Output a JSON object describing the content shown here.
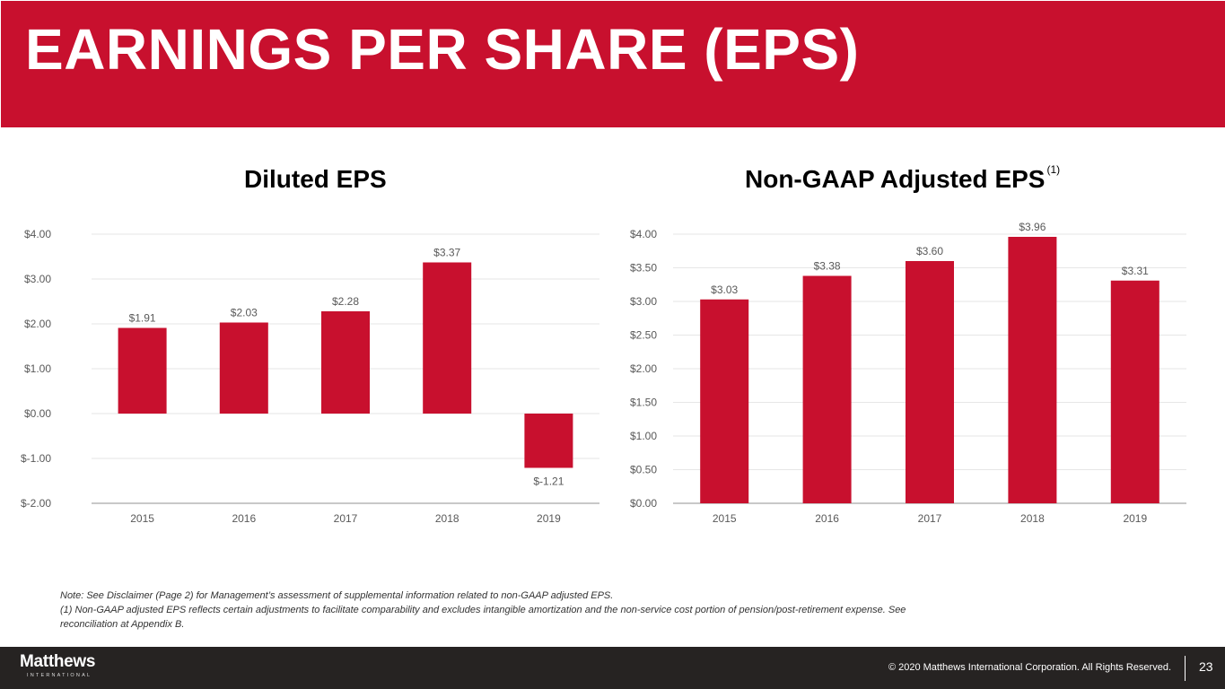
{
  "header": {
    "title": "EARNINGS PER SHARE (EPS)"
  },
  "colors": {
    "brand_red": "#c8102e",
    "footer_bg": "#262322",
    "axis_text": "#595959",
    "grid": "#e6e6e6"
  },
  "chart_data": [
    {
      "type": "bar",
      "title": "Diluted EPS",
      "title_superscript": "",
      "categories": [
        "2015",
        "2016",
        "2017",
        "2018",
        "2019"
      ],
      "values": [
        1.91,
        2.03,
        2.28,
        3.37,
        -1.21
      ],
      "data_labels": [
        "$1.91",
        "$2.03",
        "$2.28",
        "$3.37",
        "$-1.21"
      ],
      "yticks": [
        4,
        3,
        2,
        1,
        0,
        -1,
        -2
      ],
      "ytick_labels": [
        "$4.00",
        "$3.00",
        "$2.00",
        "$1.00",
        "$0.00",
        "$-1.00",
        "$-2.00"
      ],
      "ylim": [
        -2,
        4
      ],
      "xlabel": "",
      "ylabel": "",
      "grid": true,
      "color": "#c8102e"
    },
    {
      "type": "bar",
      "title": "Non-GAAP Adjusted EPS",
      "title_superscript": "(1)",
      "categories": [
        "2015",
        "2016",
        "2017",
        "2018",
        "2019"
      ],
      "values": [
        3.03,
        3.38,
        3.6,
        3.96,
        3.31
      ],
      "data_labels": [
        "$3.03",
        "$3.38",
        "$3.60",
        "$3.96",
        "$3.31"
      ],
      "yticks": [
        4,
        3.5,
        3,
        2.5,
        2,
        1.5,
        1,
        0.5,
        0
      ],
      "ytick_labels": [
        "$4.00",
        "$3.50",
        "$3.00",
        "$2.50",
        "$2.00",
        "$1.50",
        "$1.00",
        "$0.50",
        "$0.00"
      ],
      "ylim": [
        0,
        4
      ],
      "xlabel": "",
      "ylabel": "",
      "grid": true,
      "color": "#c8102e"
    }
  ],
  "notes": [
    "Note: See Disclaimer (Page 2) for Management’s assessment of supplemental information related to non-GAAP adjusted EPS.",
    "(1) Non-GAAP adjusted EPS reflects certain adjustments to facilitate comparability and excludes intangible amortization and the non-service cost portion of pension/post-retirement expense. See",
    "reconciliation at Appendix B."
  ],
  "footer": {
    "logo_name": "Matthews",
    "logo_sub": "INTERNATIONAL",
    "copyright": "© 2020 Matthews International Corporation. All Rights Reserved.",
    "page_number": "23"
  }
}
